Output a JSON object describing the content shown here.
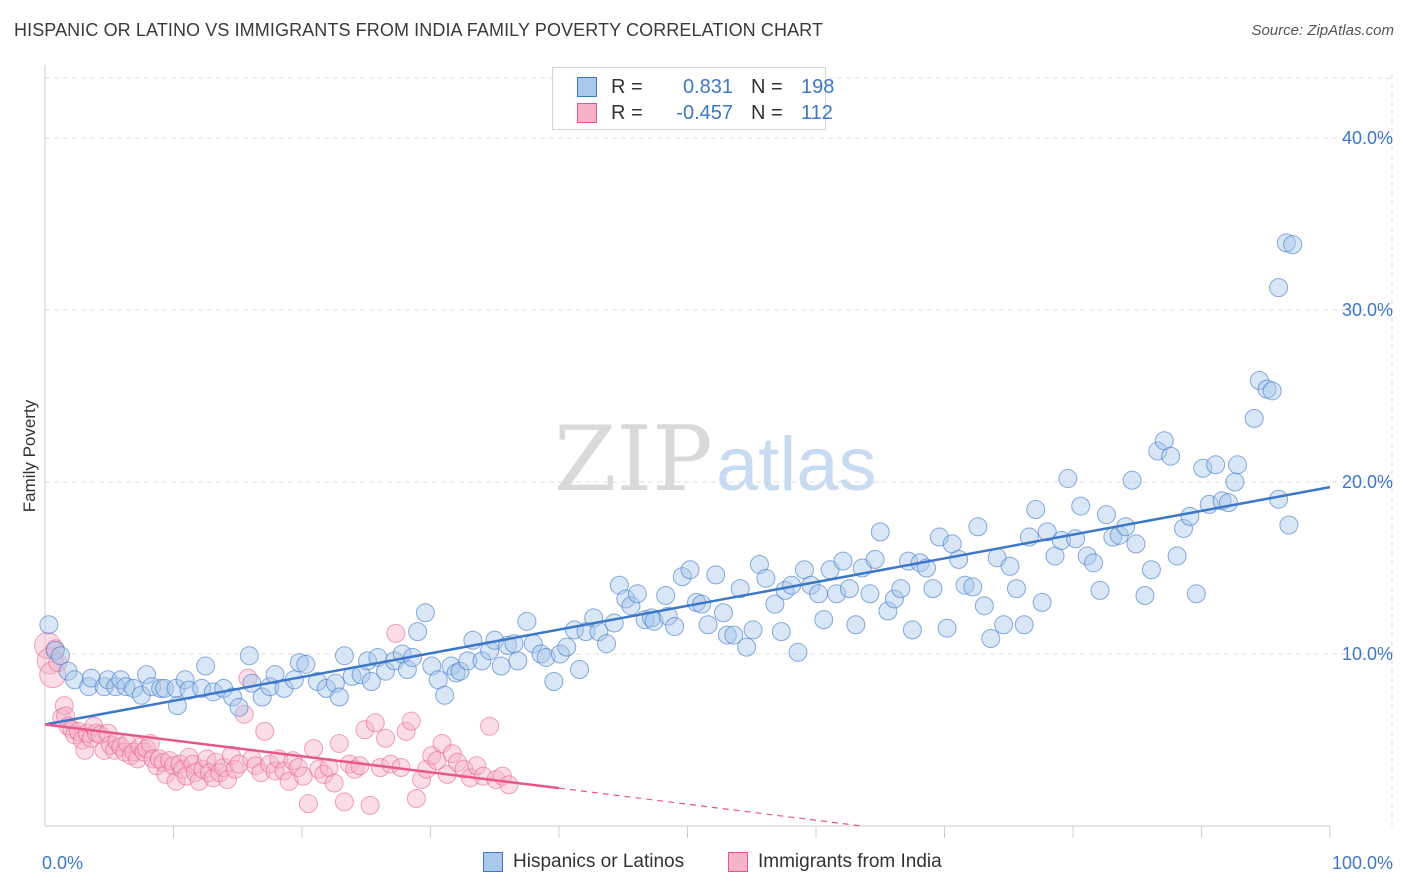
{
  "title": "HISPANIC OR LATINO VS IMMIGRANTS FROM INDIA FAMILY POVERTY CORRELATION CHART",
  "source": "Source: ZipAtlas.com",
  "watermark": {
    "zip": "ZIP",
    "atlas": "atlas"
  },
  "legend": {
    "rows": [
      {
        "r_label": "R =",
        "r_value": "0.831",
        "n_label": "N =",
        "n_value": "198"
      },
      {
        "r_label": "R =",
        "r_value": "-0.457",
        "n_label": "N =",
        "n_value": "112"
      }
    ]
  },
  "colors": {
    "blue": "#3d77c8",
    "blue_fill": "#a9c8ec",
    "pink": "#e8578a",
    "pink_fill": "#f4b3c9",
    "grid": "#dddddd"
  },
  "chart_data": {
    "type": "scatter",
    "title": "HISPANIC OR LATINO VS IMMIGRANTS FROM INDIA FAMILY POVERTY CORRELATION CHART",
    "xlabel": "",
    "ylabel": "Family Poverty",
    "xlim": [
      0,
      100
    ],
    "ylim": [
      0,
      42
    ],
    "x_tick_labels": [
      "0.0%",
      "100.0%"
    ],
    "y_ticks": [
      10,
      20,
      30,
      40
    ],
    "y_tick_labels": [
      "10.0%",
      "20.0%",
      "30.0%",
      "40.0%"
    ],
    "legend_position": "bottom",
    "series": [
      {
        "name": "Hispanics or Latinos",
        "color": "#3d77c8",
        "R": 0.831,
        "N": 198,
        "trend": {
          "x": [
            0,
            100
          ],
          "y": [
            5.9,
            19.7
          ]
        },
        "points": [
          [
            0.3,
            11.7
          ],
          [
            0.8,
            10.2
          ],
          [
            1.2,
            9.9
          ],
          [
            1.8,
            9.0
          ],
          [
            2.3,
            8.5
          ],
          [
            3.4,
            8.1
          ],
          [
            3.6,
            8.6
          ],
          [
            4.6,
            8.1
          ],
          [
            4.9,
            8.5
          ],
          [
            5.5,
            8.1
          ],
          [
            5.9,
            8.5
          ],
          [
            6.3,
            8.1
          ],
          [
            6.9,
            8.0
          ],
          [
            7.5,
            7.6
          ],
          [
            7.9,
            8.8
          ],
          [
            8.3,
            8.1
          ],
          [
            9.0,
            8.0
          ],
          [
            9.3,
            8.0
          ],
          [
            10.2,
            8.0
          ],
          [
            10.3,
            7.0
          ],
          [
            10.9,
            8.5
          ],
          [
            11.2,
            7.9
          ],
          [
            12.5,
            9.3
          ],
          [
            12.2,
            8.0
          ],
          [
            13.1,
            7.8
          ],
          [
            13.9,
            8.0
          ],
          [
            14.6,
            7.5
          ],
          [
            15.1,
            6.9
          ],
          [
            15.9,
            9.9
          ],
          [
            16.1,
            8.3
          ],
          [
            16.9,
            7.5
          ],
          [
            17.5,
            8.1
          ],
          [
            17.9,
            8.8
          ],
          [
            18.6,
            8.0
          ],
          [
            19.4,
            8.5
          ],
          [
            19.8,
            9.5
          ],
          [
            20.3,
            9.4
          ],
          [
            21.2,
            8.4
          ],
          [
            21.9,
            8.0
          ],
          [
            22.6,
            8.3
          ],
          [
            23.3,
            9.9
          ],
          [
            22.9,
            7.5
          ],
          [
            23.9,
            8.7
          ],
          [
            24.6,
            8.8
          ],
          [
            25.1,
            9.6
          ],
          [
            25.4,
            8.4
          ],
          [
            25.9,
            9.8
          ],
          [
            26.5,
            9.0
          ],
          [
            27.2,
            9.6
          ],
          [
            27.8,
            10.0
          ],
          [
            28.2,
            9.1
          ],
          [
            28.6,
            9.8
          ],
          [
            29.0,
            11.3
          ],
          [
            29.6,
            12.4
          ],
          [
            30.1,
            9.3
          ],
          [
            30.6,
            8.5
          ],
          [
            31.1,
            7.6
          ],
          [
            31.6,
            9.3
          ],
          [
            32.0,
            8.9
          ],
          [
            32.3,
            9.0
          ],
          [
            32.9,
            9.6
          ],
          [
            33.3,
            10.8
          ],
          [
            34.0,
            9.6
          ],
          [
            34.6,
            10.2
          ],
          [
            35.0,
            10.8
          ],
          [
            35.5,
            9.3
          ],
          [
            36.0,
            10.5
          ],
          [
            36.5,
            10.6
          ],
          [
            36.8,
            9.6
          ],
          [
            37.5,
            11.9
          ],
          [
            38.0,
            10.6
          ],
          [
            38.6,
            10.0
          ],
          [
            39.0,
            9.8
          ],
          [
            39.6,
            8.4
          ],
          [
            40.1,
            10.0
          ],
          [
            40.6,
            10.4
          ],
          [
            41.2,
            11.4
          ],
          [
            41.6,
            9.1
          ],
          [
            42.1,
            11.3
          ],
          [
            42.7,
            12.1
          ],
          [
            43.1,
            11.3
          ],
          [
            43.7,
            10.6
          ],
          [
            44.3,
            11.8
          ],
          [
            44.7,
            14.0
          ],
          [
            45.2,
            13.2
          ],
          [
            45.6,
            12.8
          ],
          [
            46.1,
            13.5
          ],
          [
            46.7,
            12.0
          ],
          [
            47.2,
            12.1
          ],
          [
            47.4,
            11.9
          ],
          [
            48.3,
            13.4
          ],
          [
            48.5,
            12.2
          ],
          [
            49.0,
            11.6
          ],
          [
            49.6,
            14.5
          ],
          [
            50.2,
            14.9
          ],
          [
            50.7,
            13.0
          ],
          [
            51.1,
            12.9
          ],
          [
            51.6,
            11.7
          ],
          [
            52.2,
            14.6
          ],
          [
            52.8,
            12.4
          ],
          [
            53.1,
            11.1
          ],
          [
            53.6,
            11.1
          ],
          [
            54.1,
            13.8
          ],
          [
            54.6,
            10.4
          ],
          [
            55.1,
            11.4
          ],
          [
            55.6,
            15.2
          ],
          [
            56.1,
            14.4
          ],
          [
            56.8,
            12.9
          ],
          [
            57.3,
            11.3
          ],
          [
            57.6,
            13.7
          ],
          [
            58.1,
            14.0
          ],
          [
            58.6,
            10.1
          ],
          [
            59.1,
            14.9
          ],
          [
            59.6,
            14.0
          ],
          [
            60.2,
            13.5
          ],
          [
            60.6,
            12.0
          ],
          [
            61.1,
            14.9
          ],
          [
            61.6,
            13.5
          ],
          [
            62.1,
            15.4
          ],
          [
            62.6,
            13.8
          ],
          [
            63.1,
            11.7
          ],
          [
            63.6,
            15.0
          ],
          [
            64.2,
            13.5
          ],
          [
            64.6,
            15.5
          ],
          [
            65.0,
            17.1
          ],
          [
            65.6,
            12.5
          ],
          [
            66.1,
            13.2
          ],
          [
            66.6,
            13.8
          ],
          [
            67.2,
            15.4
          ],
          [
            67.5,
            11.4
          ],
          [
            68.1,
            15.3
          ],
          [
            68.6,
            15.0
          ],
          [
            69.1,
            13.8
          ],
          [
            69.6,
            16.8
          ],
          [
            70.2,
            11.5
          ],
          [
            70.6,
            16.4
          ],
          [
            71.1,
            15.5
          ],
          [
            71.6,
            14.0
          ],
          [
            72.2,
            13.9
          ],
          [
            72.6,
            17.4
          ],
          [
            73.1,
            12.8
          ],
          [
            73.6,
            10.9
          ],
          [
            74.1,
            15.6
          ],
          [
            74.6,
            11.7
          ],
          [
            75.1,
            15.1
          ],
          [
            75.6,
            13.8
          ],
          [
            76.2,
            11.7
          ],
          [
            76.6,
            16.8
          ],
          [
            77.1,
            18.4
          ],
          [
            77.6,
            13.0
          ],
          [
            78.0,
            17.1
          ],
          [
            78.6,
            15.7
          ],
          [
            79.1,
            16.6
          ],
          [
            79.6,
            20.2
          ],
          [
            80.2,
            16.7
          ],
          [
            80.6,
            18.6
          ],
          [
            81.1,
            15.7
          ],
          [
            81.6,
            15.3
          ],
          [
            82.1,
            13.7
          ],
          [
            82.6,
            18.1
          ],
          [
            83.1,
            16.8
          ],
          [
            83.6,
            16.9
          ],
          [
            84.1,
            17.4
          ],
          [
            84.6,
            20.1
          ],
          [
            84.9,
            16.4
          ],
          [
            85.6,
            13.4
          ],
          [
            86.1,
            14.9
          ],
          [
            86.6,
            21.8
          ],
          [
            87.1,
            22.4
          ],
          [
            87.6,
            21.5
          ],
          [
            88.1,
            15.7
          ],
          [
            88.6,
            17.3
          ],
          [
            89.1,
            18.0
          ],
          [
            89.6,
            13.5
          ],
          [
            90.1,
            20.8
          ],
          [
            90.6,
            18.7
          ],
          [
            91.1,
            21.0
          ],
          [
            91.6,
            18.9
          ],
          [
            92.1,
            18.8
          ],
          [
            92.6,
            20.0
          ],
          [
            92.8,
            21.0
          ],
          [
            94.1,
            23.7
          ],
          [
            94.5,
            25.9
          ],
          [
            95.1,
            25.4
          ],
          [
            95.5,
            25.3
          ],
          [
            96.0,
            31.3
          ],
          [
            96.6,
            33.9
          ],
          [
            97.1,
            33.8
          ],
          [
            96.8,
            17.5
          ],
          [
            96.0,
            19.0
          ]
        ]
      },
      {
        "name": "Immigrants from India",
        "color": "#e8578a",
        "R": -0.457,
        "N": 112,
        "trend_solid": {
          "x": [
            0,
            40
          ],
          "y": [
            5.9,
            2.2
          ]
        },
        "trend_dashed": {
          "x": [
            40,
            100
          ],
          "y": [
            2.2,
            -3.4
          ]
        },
        "points": [
          [
            0.2,
            10.5
          ],
          [
            0.4,
            9.6
          ],
          [
            0.6,
            8.8
          ],
          [
            0.8,
            10.3
          ],
          [
            1.0,
            9.5
          ],
          [
            1.3,
            6.3
          ],
          [
            1.5,
            7.0
          ],
          [
            1.6,
            6.4
          ],
          [
            1.8,
            5.8
          ],
          [
            2.1,
            5.6
          ],
          [
            2.3,
            5.3
          ],
          [
            2.6,
            5.5
          ],
          [
            2.9,
            5.0
          ],
          [
            3.1,
            4.4
          ],
          [
            3.3,
            5.4
          ],
          [
            3.6,
            5.1
          ],
          [
            3.8,
            5.8
          ],
          [
            4.0,
            5.4
          ],
          [
            4.3,
            5.3
          ],
          [
            4.6,
            4.4
          ],
          [
            4.9,
            5.4
          ],
          [
            5.1,
            4.7
          ],
          [
            5.4,
            4.4
          ],
          [
            5.6,
            4.9
          ],
          [
            5.9,
            4.6
          ],
          [
            6.2,
            4.3
          ],
          [
            6.4,
            4.8
          ],
          [
            6.7,
            4.1
          ],
          [
            6.9,
            4.3
          ],
          [
            7.2,
            3.9
          ],
          [
            7.4,
            4.6
          ],
          [
            7.7,
            4.3
          ],
          [
            7.9,
            4.5
          ],
          [
            8.2,
            4.8
          ],
          [
            8.4,
            3.9
          ],
          [
            8.7,
            3.5
          ],
          [
            8.9,
            3.9
          ],
          [
            9.2,
            3.7
          ],
          [
            9.4,
            3.0
          ],
          [
            9.7,
            3.8
          ],
          [
            10.0,
            3.5
          ],
          [
            10.2,
            2.6
          ],
          [
            10.5,
            3.6
          ],
          [
            10.7,
            3.3
          ],
          [
            11.0,
            2.9
          ],
          [
            11.2,
            4.0
          ],
          [
            11.5,
            3.6
          ],
          [
            11.7,
            3.1
          ],
          [
            12.0,
            2.6
          ],
          [
            12.3,
            3.3
          ],
          [
            12.6,
            3.9
          ],
          [
            12.8,
            3.1
          ],
          [
            13.1,
            2.8
          ],
          [
            13.3,
            3.7
          ],
          [
            13.6,
            3.1
          ],
          [
            13.9,
            3.4
          ],
          [
            14.2,
            2.7
          ],
          [
            14.5,
            4.1
          ],
          [
            14.8,
            3.3
          ],
          [
            15.1,
            3.6
          ],
          [
            15.5,
            6.5
          ],
          [
            15.8,
            8.6
          ],
          [
            16.1,
            3.9
          ],
          [
            16.4,
            3.5
          ],
          [
            16.8,
            3.1
          ],
          [
            17.1,
            5.5
          ],
          [
            17.5,
            3.6
          ],
          [
            17.9,
            3.2
          ],
          [
            18.2,
            3.9
          ],
          [
            18.6,
            3.2
          ],
          [
            19.0,
            2.6
          ],
          [
            19.3,
            3.8
          ],
          [
            19.7,
            3.4
          ],
          [
            20.1,
            2.9
          ],
          [
            20.5,
            1.3
          ],
          [
            20.9,
            4.5
          ],
          [
            21.3,
            3.3
          ],
          [
            21.7,
            3.0
          ],
          [
            22.1,
            3.4
          ],
          [
            22.5,
            2.5
          ],
          [
            22.9,
            4.8
          ],
          [
            23.3,
            1.4
          ],
          [
            23.7,
            3.6
          ],
          [
            24.1,
            3.3
          ],
          [
            24.5,
            3.5
          ],
          [
            24.9,
            5.6
          ],
          [
            25.3,
            1.2
          ],
          [
            25.7,
            6.0
          ],
          [
            26.1,
            3.4
          ],
          [
            26.5,
            5.1
          ],
          [
            26.9,
            3.6
          ],
          [
            27.3,
            11.2
          ],
          [
            27.7,
            3.4
          ],
          [
            28.1,
            5.5
          ],
          [
            28.5,
            6.1
          ],
          [
            28.9,
            1.6
          ],
          [
            29.3,
            2.7
          ],
          [
            29.7,
            3.3
          ],
          [
            30.1,
            4.1
          ],
          [
            30.5,
            3.8
          ],
          [
            30.9,
            4.8
          ],
          [
            31.3,
            3.0
          ],
          [
            31.7,
            4.2
          ],
          [
            32.1,
            3.7
          ],
          [
            32.6,
            3.3
          ],
          [
            33.1,
            2.8
          ],
          [
            33.6,
            3.5
          ],
          [
            34.1,
            2.9
          ],
          [
            34.6,
            5.8
          ],
          [
            35.1,
            2.7
          ],
          [
            35.6,
            2.9
          ],
          [
            36.1,
            2.4
          ]
        ]
      }
    ]
  },
  "bottom_legend": [
    {
      "label": "Hispanics or Latinos"
    },
    {
      "label": "Immigrants from India"
    }
  ]
}
